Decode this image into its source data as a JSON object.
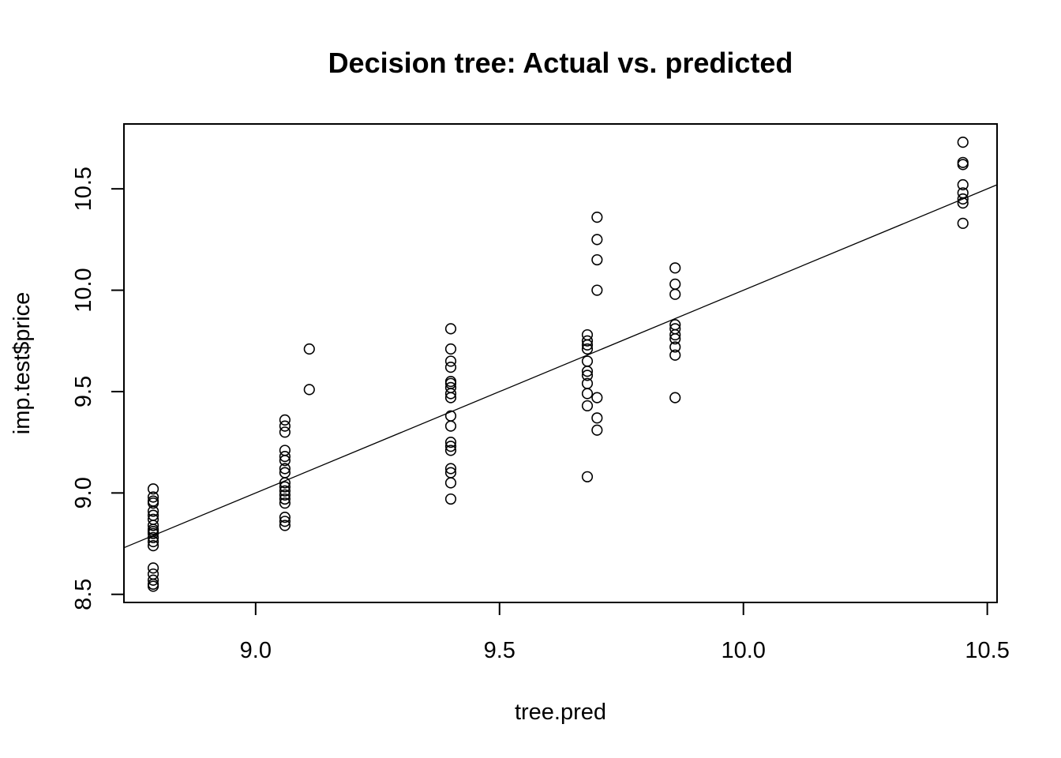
{
  "chart_data": {
    "type": "scatter",
    "title": "Decision tree: Actual vs. predicted",
    "xlabel": "tree.pred",
    "ylabel": "imp.test$price",
    "xlim": [
      8.73,
      10.52
    ],
    "ylim": [
      8.46,
      10.82
    ],
    "x_ticks": [
      {
        "value": 9.0,
        "label": "9.0"
      },
      {
        "value": 9.5,
        "label": "9.5"
      },
      {
        "value": 10.0,
        "label": "10.0"
      },
      {
        "value": 10.5,
        "label": "10.5"
      }
    ],
    "y_ticks": [
      {
        "value": 8.5,
        "label": "8.5"
      },
      {
        "value": 9.0,
        "label": "9.0"
      },
      {
        "value": 9.5,
        "label": "9.5"
      },
      {
        "value": 10.0,
        "label": "10.0"
      },
      {
        "value": 10.5,
        "label": "10.5"
      }
    ],
    "grid": false,
    "marker": "open-circle",
    "reference_line": {
      "type": "identity",
      "slope": 1,
      "intercept": 0
    },
    "points": [
      {
        "x": 8.79,
        "y": 9.02
      },
      {
        "x": 8.79,
        "y": 8.98
      },
      {
        "x": 8.79,
        "y": 8.96
      },
      {
        "x": 8.79,
        "y": 8.95
      },
      {
        "x": 8.79,
        "y": 8.91
      },
      {
        "x": 8.79,
        "y": 8.89
      },
      {
        "x": 8.79,
        "y": 8.87
      },
      {
        "x": 8.79,
        "y": 8.84
      },
      {
        "x": 8.79,
        "y": 8.82
      },
      {
        "x": 8.79,
        "y": 8.81
      },
      {
        "x": 8.79,
        "y": 8.8
      },
      {
        "x": 8.79,
        "y": 8.78
      },
      {
        "x": 8.79,
        "y": 8.76
      },
      {
        "x": 8.79,
        "y": 8.74
      },
      {
        "x": 8.79,
        "y": 8.63
      },
      {
        "x": 8.79,
        "y": 8.6
      },
      {
        "x": 8.79,
        "y": 8.57
      },
      {
        "x": 8.79,
        "y": 8.55
      },
      {
        "x": 8.79,
        "y": 8.54
      },
      {
        "x": 9.06,
        "y": 9.36
      },
      {
        "x": 9.06,
        "y": 9.33
      },
      {
        "x": 9.06,
        "y": 9.3
      },
      {
        "x": 9.06,
        "y": 9.21
      },
      {
        "x": 9.06,
        "y": 9.18
      },
      {
        "x": 9.06,
        "y": 9.16
      },
      {
        "x": 9.06,
        "y": 9.12
      },
      {
        "x": 9.06,
        "y": 9.1
      },
      {
        "x": 9.06,
        "y": 9.05
      },
      {
        "x": 9.06,
        "y": 9.03
      },
      {
        "x": 9.06,
        "y": 9.01
      },
      {
        "x": 9.06,
        "y": 8.99
      },
      {
        "x": 9.06,
        "y": 8.97
      },
      {
        "x": 9.06,
        "y": 8.95
      },
      {
        "x": 9.06,
        "y": 8.88
      },
      {
        "x": 9.06,
        "y": 8.86
      },
      {
        "x": 9.06,
        "y": 8.84
      },
      {
        "x": 9.11,
        "y": 9.71
      },
      {
        "x": 9.11,
        "y": 9.51
      },
      {
        "x": 9.4,
        "y": 9.81
      },
      {
        "x": 9.4,
        "y": 9.71
      },
      {
        "x": 9.4,
        "y": 9.65
      },
      {
        "x": 9.4,
        "y": 9.62
      },
      {
        "x": 9.4,
        "y": 9.55
      },
      {
        "x": 9.4,
        "y": 9.54
      },
      {
        "x": 9.4,
        "y": 9.52
      },
      {
        "x": 9.4,
        "y": 9.49
      },
      {
        "x": 9.4,
        "y": 9.47
      },
      {
        "x": 9.4,
        "y": 9.38
      },
      {
        "x": 9.4,
        "y": 9.33
      },
      {
        "x": 9.4,
        "y": 9.25
      },
      {
        "x": 9.4,
        "y": 9.23
      },
      {
        "x": 9.4,
        "y": 9.21
      },
      {
        "x": 9.4,
        "y": 9.12
      },
      {
        "x": 9.4,
        "y": 9.1
      },
      {
        "x": 9.4,
        "y": 9.05
      },
      {
        "x": 9.4,
        "y": 8.97
      },
      {
        "x": 9.68,
        "y": 9.78
      },
      {
        "x": 9.68,
        "y": 9.75
      },
      {
        "x": 9.68,
        "y": 9.73
      },
      {
        "x": 9.68,
        "y": 9.71
      },
      {
        "x": 9.68,
        "y": 9.65
      },
      {
        "x": 9.68,
        "y": 9.6
      },
      {
        "x": 9.68,
        "y": 9.58
      },
      {
        "x": 9.68,
        "y": 9.54
      },
      {
        "x": 9.68,
        "y": 9.49
      },
      {
        "x": 9.68,
        "y": 9.43
      },
      {
        "x": 9.68,
        "y": 9.08
      },
      {
        "x": 9.7,
        "y": 10.36
      },
      {
        "x": 9.7,
        "y": 10.25
      },
      {
        "x": 9.7,
        "y": 10.15
      },
      {
        "x": 9.7,
        "y": 10.0
      },
      {
        "x": 9.7,
        "y": 9.47
      },
      {
        "x": 9.7,
        "y": 9.37
      },
      {
        "x": 9.7,
        "y": 9.31
      },
      {
        "x": 9.86,
        "y": 10.11
      },
      {
        "x": 9.86,
        "y": 10.03
      },
      {
        "x": 9.86,
        "y": 9.98
      },
      {
        "x": 9.86,
        "y": 9.83
      },
      {
        "x": 9.86,
        "y": 9.81
      },
      {
        "x": 9.86,
        "y": 9.78
      },
      {
        "x": 9.86,
        "y": 9.76
      },
      {
        "x": 9.86,
        "y": 9.72
      },
      {
        "x": 9.86,
        "y": 9.68
      },
      {
        "x": 9.86,
        "y": 9.47
      },
      {
        "x": 10.45,
        "y": 10.73
      },
      {
        "x": 10.45,
        "y": 10.63
      },
      {
        "x": 10.45,
        "y": 10.62
      },
      {
        "x": 10.45,
        "y": 10.52
      },
      {
        "x": 10.45,
        "y": 10.48
      },
      {
        "x": 10.45,
        "y": 10.45
      },
      {
        "x": 10.45,
        "y": 10.43
      },
      {
        "x": 10.45,
        "y": 10.33
      }
    ]
  }
}
